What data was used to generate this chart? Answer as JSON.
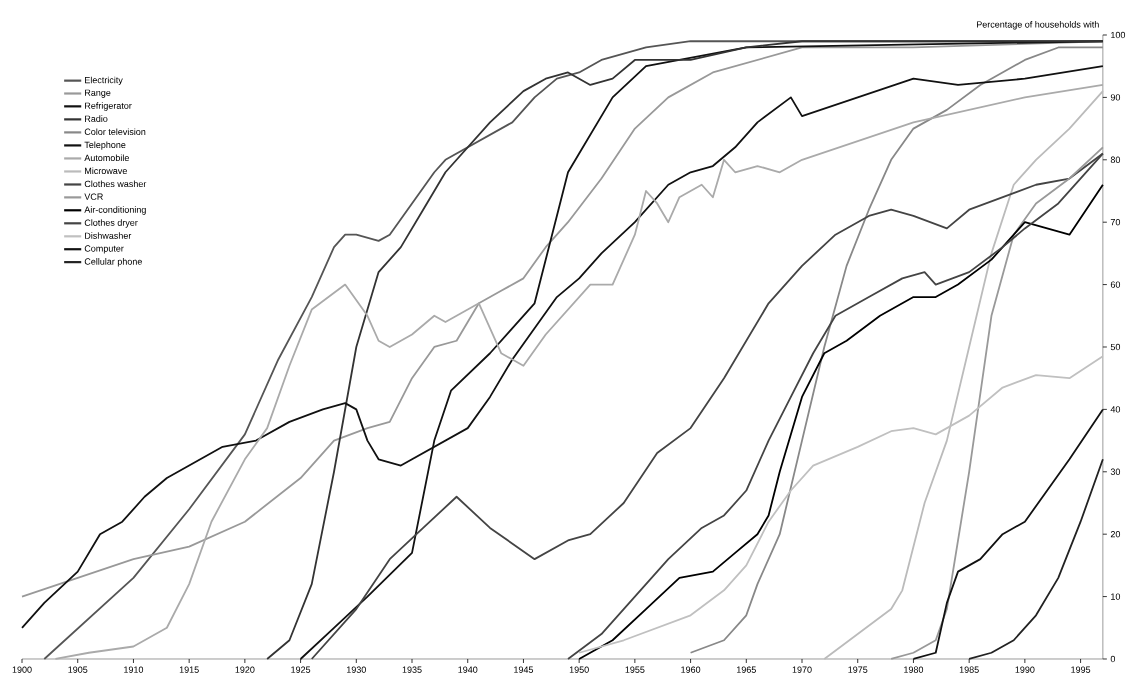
{
  "chart_data": {
    "type": "line",
    "ylabel": "Percentage of households with",
    "legend": "top left",
    "marker": "none",
    "line_style": "solid",
    "grid": false,
    "xlim": [
      1900,
      1997
    ],
    "ylim": [
      0,
      100
    ],
    "xticks": [
      1900,
      1905,
      1910,
      1915,
      1920,
      1925,
      1930,
      1935,
      1940,
      1945,
      1950,
      1955,
      1960,
      1965,
      1970,
      1975,
      1980,
      1985,
      1990,
      1995
    ],
    "yticks": [
      0,
      10,
      20,
      30,
      40,
      50,
      60,
      70,
      80,
      90,
      100
    ],
    "series": [
      {
        "name": "Electricity",
        "color": "#555555",
        "x": [
          1902,
          1910,
          1915,
          1920,
          1923,
          1926,
          1928,
          1929,
          1930,
          1932,
          1933,
          1935,
          1937,
          1938,
          1940,
          1942,
          1944,
          1946,
          1948,
          1950,
          1952,
          1956,
          1960,
          1970,
          1997
        ],
        "values": [
          0,
          13,
          24,
          36,
          48,
          58,
          66,
          68,
          68,
          67,
          68,
          73,
          78,
          80,
          82,
          84,
          86,
          90,
          93,
          94,
          96,
          98,
          99,
          99,
          99
        ]
      },
      {
        "name": "Range",
        "color": "#999999",
        "x": [
          1900,
          1905,
          1910,
          1915,
          1920,
          1925,
          1928,
          1931,
          1933,
          1935,
          1937,
          1939,
          1941,
          1943,
          1945,
          1947,
          1949,
          1952,
          1955,
          1958,
          1962,
          1966,
          1970,
          1980,
          1997
        ],
        "values": [
          10,
          13,
          16,
          18,
          22,
          29,
          35,
          37,
          38,
          45,
          50,
          51,
          57,
          59,
          61,
          66,
          70,
          77,
          85,
          90,
          94,
          96,
          98,
          98,
          99
        ]
      },
      {
        "name": "Refrigerator",
        "color": "#111111",
        "x": [
          1925,
          1928,
          1931,
          1935,
          1937,
          1938.5,
          1942,
          1946,
          1949,
          1950,
          1953,
          1956,
          1965,
          1997
        ],
        "values": [
          0,
          5,
          10,
          17,
          35,
          43,
          49,
          57,
          78,
          81,
          90,
          95,
          98,
          99
        ]
      },
      {
        "name": "Radio",
        "color": "#333333",
        "x": [
          1922,
          1924,
          1926,
          1928,
          1930,
          1932,
          1934,
          1936,
          1938,
          1940,
          1942,
          1945,
          1947,
          1949,
          1951,
          1953,
          1955,
          1960,
          1965,
          1970,
          1997
        ],
        "values": [
          0,
          3,
          12,
          30,
          50,
          62,
          66,
          72,
          78,
          82,
          86,
          91,
          93,
          94,
          92,
          93,
          96,
          96,
          98,
          99,
          99
        ]
      },
      {
        "name": "Color television",
        "color": "#888888",
        "x": [
          1960,
          1963,
          1965,
          1966,
          1968,
          1970,
          1972,
          1974,
          1976,
          1978,
          1980,
          1983,
          1986,
          1990,
          1993,
          1997
        ],
        "values": [
          1,
          3,
          7,
          12,
          20,
          35,
          50,
          63,
          72,
          80,
          85,
          88,
          92,
          96,
          98,
          98
        ]
      },
      {
        "name": "Telephone",
        "color": "#111111",
        "x": [
          1900,
          1902,
          1905,
          1907,
          1909,
          1911,
          1913,
          1915,
          1918,
          1921,
          1924,
          1927,
          1929,
          1930,
          1931,
          1932,
          1934,
          1936,
          1938,
          1940,
          1942,
          1944,
          1946,
          1948,
          1950,
          1952,
          1955,
          1958,
          1960,
          1962,
          1964,
          1966,
          1969,
          1970,
          1975,
          1980,
          1984,
          1990,
          1997
        ],
        "values": [
          5,
          9,
          14,
          20,
          22,
          26,
          29,
          31,
          34,
          35,
          38,
          40,
          41,
          40,
          35,
          32,
          31,
          33,
          35,
          37,
          42,
          48,
          53,
          58,
          61,
          65,
          70,
          76,
          78,
          79,
          82,
          86,
          90,
          87,
          90,
          93,
          92,
          93,
          95
        ]
      },
      {
        "name": "Automobile",
        "color": "#aaaaaa",
        "x": [
          1903,
          1906,
          1910,
          1913,
          1915,
          1917,
          1920,
          1922,
          1924,
          1926,
          1929,
          1931,
          1932,
          1933,
          1935,
          1937,
          1938,
          1940,
          1941,
          1942,
          1943,
          1945,
          1947,
          1949,
          1951,
          1953,
          1955,
          1956,
          1957,
          1958,
          1959,
          1961,
          1962,
          1963,
          1964,
          1966,
          1968,
          1970,
          1975,
          1980,
          1985,
          1990,
          1997
        ],
        "values": [
          0,
          1,
          2,
          5,
          12,
          22,
          32,
          37,
          47,
          56,
          60,
          55,
          51,
          50,
          52,
          55,
          54,
          56,
          57,
          53,
          49,
          47,
          52,
          56,
          60,
          60,
          68,
          75,
          73,
          70,
          74,
          76,
          74,
          80,
          78,
          79,
          78,
          80,
          83,
          86,
          88,
          90,
          92
        ]
      },
      {
        "name": "Microwave",
        "color": "#bbbbbb",
        "x": [
          1972,
          1975,
          1978,
          1979,
          1981,
          1983,
          1985,
          1987,
          1989,
          1991,
          1994,
          1997
        ],
        "values": [
          0,
          4,
          8,
          11,
          25,
          35,
          50,
          65,
          76,
          80,
          85,
          91
        ]
      },
      {
        "name": "Clothes washer",
        "color": "#444444",
        "x": [
          1926,
          1930,
          1933,
          1936,
          1939,
          1942,
          1946,
          1949,
          1951,
          1954,
          1957,
          1960,
          1963,
          1967,
          1970,
          1973,
          1976,
          1978,
          1980,
          1983,
          1985,
          1988,
          1991,
          1994,
          1997
        ],
        "values": [
          0,
          8,
          16,
          21,
          26,
          21,
          16,
          19,
          20,
          25,
          33,
          37,
          45,
          57,
          63,
          68,
          71,
          72,
          71,
          69,
          72,
          74,
          76,
          77,
          81
        ]
      },
      {
        "name": "VCR",
        "color": "#999999",
        "x": [
          1978,
          1980,
          1982,
          1983,
          1985,
          1987,
          1989,
          1991,
          1994,
          1997
        ],
        "values": [
          0,
          1,
          3,
          8,
          30,
          55,
          68,
          73,
          77,
          82
        ]
      },
      {
        "name": "Air-conditioning",
        "color": "#000000",
        "x": [
          1950,
          1953,
          1956,
          1959,
          1962,
          1964,
          1966,
          1967,
          1968,
          1970,
          1972,
          1974,
          1977,
          1980,
          1982,
          1984,
          1987,
          1990,
          1992,
          1994,
          1997
        ],
        "values": [
          0,
          3,
          8,
          13,
          14,
          17,
          20,
          23,
          30,
          42,
          49,
          51,
          55,
          58,
          58,
          60,
          64,
          70,
          69,
          68,
          76
        ]
      },
      {
        "name": "Clothes dryer",
        "color": "#444444",
        "x": [
          1949,
          1952,
          1955,
          1958,
          1961,
          1963,
          1965,
          1967,
          1969,
          1971,
          1973,
          1976,
          1979,
          1981,
          1982,
          1985,
          1988,
          1990,
          1993,
          1997
        ],
        "values": [
          0,
          4,
          10,
          16,
          21,
          23,
          27,
          35,
          42,
          49,
          55,
          58,
          61,
          62,
          60,
          62,
          66,
          69,
          73,
          81
        ]
      },
      {
        "name": "Dishwasher",
        "color": "#c0c0c0",
        "x": [
          1950,
          1954,
          1957,
          1960,
          1963,
          1965,
          1967,
          1969,
          1971,
          1975,
          1978,
          1980,
          1982,
          1985,
          1988,
          1991,
          1994,
          1997
        ],
        "values": [
          1,
          3,
          5,
          7,
          11,
          15,
          22,
          27,
          31,
          34,
          36.5,
          37,
          36,
          39,
          43.5,
          45.5,
          45,
          48.5
        ]
      },
      {
        "name": "Computer",
        "color": "#111111",
        "x": [
          1980,
          1982,
          1983,
          1984,
          1986,
          1988,
          1990,
          1992,
          1994,
          1997
        ],
        "values": [
          0,
          1,
          9,
          14,
          16,
          20,
          22,
          27,
          32,
          40
        ]
      },
      {
        "name": "Cellular phone",
        "color": "#222222",
        "x": [
          1985,
          1987,
          1989,
          1991,
          1993,
          1995,
          1997
        ],
        "values": [
          0,
          1,
          3,
          7,
          13,
          22,
          32
        ]
      }
    ]
  }
}
